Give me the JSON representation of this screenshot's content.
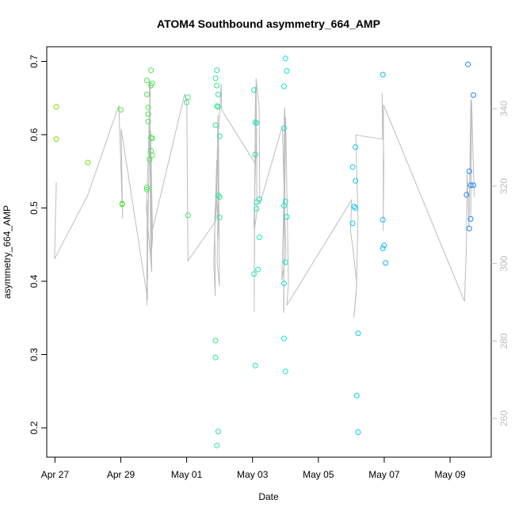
{
  "chart_data": {
    "type": "scatter",
    "title": "ATOM4 Southbound asymmetry_664_AMP",
    "xlabel": "Date",
    "ylabel": "asymmetry_664_AMP",
    "x_ticks": [
      "Apr 27",
      "Apr 29",
      "May 01",
      "May 03",
      "May 05",
      "May 07",
      "May 09"
    ],
    "y_ticks": [
      "0.2",
      "0.3",
      "0.4",
      "0.5",
      "0.6",
      "0.7"
    ],
    "y2_ticks": [
      "260",
      "280",
      "300",
      "320",
      "340"
    ],
    "xlim": [
      "Apr 26 18:00",
      "May 10 06:00"
    ],
    "ylim": [
      0.16,
      0.72
    ],
    "y2lim": [
      250,
      356
    ],
    "grid": false,
    "legend": "none",
    "colors": {
      "line": "#bdbdbd",
      "points_start": "#7fe000",
      "points_end": "#1e7dff",
      "right_axis": "#bdbdbd"
    },
    "series": [
      {
        "values": [
          {
            "x": "Apr 27 01:00",
            "y": 0.638
          },
          {
            "x": "Apr 27 01:00",
            "y": 0.594
          },
          {
            "x": "Apr 28 00:00",
            "y": 0.562
          },
          {
            "x": "Apr 29 00:00",
            "y": 0.634
          },
          {
            "x": "Apr 29 01:00",
            "y": 0.506
          },
          {
            "x": "Apr 29 01:00",
            "y": 0.505
          },
          {
            "x": "Apr 29 19:00",
            "y": 0.674
          },
          {
            "x": "Apr 29 19:00",
            "y": 0.655
          },
          {
            "x": "Apr 29 20:00",
            "y": 0.637
          },
          {
            "x": "Apr 29 20:00",
            "y": 0.628
          },
          {
            "x": "Apr 29 20:00",
            "y": 0.618
          },
          {
            "x": "Apr 29 22:00",
            "y": 0.688
          },
          {
            "x": "Apr 29 22:00",
            "y": 0.667
          },
          {
            "x": "Apr 29 23:00",
            "y": 0.67
          },
          {
            "x": "Apr 29 22:00",
            "y": 0.596
          },
          {
            "x": "Apr 29 23:00",
            "y": 0.595
          },
          {
            "x": "Apr 29 22:00",
            "y": 0.578
          },
          {
            "x": "Apr 29 23:00",
            "y": 0.572
          },
          {
            "x": "Apr 29 21:00",
            "y": 0.566
          },
          {
            "x": "Apr 29 19:00",
            "y": 0.528
          },
          {
            "x": "Apr 29 19:00",
            "y": 0.525
          },
          {
            "x": "May 01 01:00",
            "y": 0.651
          },
          {
            "x": "May 01 00:00",
            "y": 0.644
          },
          {
            "x": "May 01 01:00",
            "y": 0.49
          },
          {
            "x": "May 01 22:00",
            "y": 0.688
          },
          {
            "x": "May 01 21:00",
            "y": 0.677
          },
          {
            "x": "May 01 22:00",
            "y": 0.667
          },
          {
            "x": "May 01 23:00",
            "y": 0.655
          },
          {
            "x": "May 01 22:00",
            "y": 0.639
          },
          {
            "x": "May 01 23:00",
            "y": 0.638
          },
          {
            "x": "May 01 21:00",
            "y": 0.613
          },
          {
            "x": "May 02 00:00",
            "y": 0.598
          },
          {
            "x": "May 01 23:00",
            "y": 0.517
          },
          {
            "x": "May 02 00:00",
            "y": 0.515
          },
          {
            "x": "May 02 00:00",
            "y": 0.487
          },
          {
            "x": "May 01 21:00",
            "y": 0.319
          },
          {
            "x": "May 01 21:00",
            "y": 0.296
          },
          {
            "x": "May 01 23:00",
            "y": 0.195
          },
          {
            "x": "May 01 22:00",
            "y": 0.176
          },
          {
            "x": "May 03 01:00",
            "y": 0.661
          },
          {
            "x": "May 03 02:00",
            "y": 0.617
          },
          {
            "x": "May 03 03:00",
            "y": 0.616
          },
          {
            "x": "May 03 02:00",
            "y": 0.573
          },
          {
            "x": "May 03 05:00",
            "y": 0.512
          },
          {
            "x": "May 03 03:00",
            "y": 0.508
          },
          {
            "x": "May 03 03:00",
            "y": 0.499
          },
          {
            "x": "May 03 05:00",
            "y": 0.46
          },
          {
            "x": "May 03 04:00",
            "y": 0.416
          },
          {
            "x": "May 03 01:00",
            "y": 0.41
          },
          {
            "x": "May 03 02:00",
            "y": 0.285
          },
          {
            "x": "May 04 00:00",
            "y": 0.704
          },
          {
            "x": "May 04 01:00",
            "y": 0.687
          },
          {
            "x": "May 03 23:00",
            "y": 0.666
          },
          {
            "x": "May 03 23:00",
            "y": 0.609
          },
          {
            "x": "May 04 00:00",
            "y": 0.509
          },
          {
            "x": "May 03 23:00",
            "y": 0.503
          },
          {
            "x": "May 04 01:00",
            "y": 0.488
          },
          {
            "x": "May 04 00:00",
            "y": 0.426
          },
          {
            "x": "May 03 23:00",
            "y": 0.397
          },
          {
            "x": "May 03 23:00",
            "y": 0.322
          },
          {
            "x": "May 04 00:00",
            "y": 0.277
          },
          {
            "x": "May 06 01:00",
            "y": 0.556
          },
          {
            "x": "May 06 03:00",
            "y": 0.583
          },
          {
            "x": "May 06 03:00",
            "y": 0.537
          },
          {
            "x": "May 06 02:00",
            "y": 0.502
          },
          {
            "x": "May 06 03:00",
            "y": 0.5
          },
          {
            "x": "May 06 01:00",
            "y": 0.479
          },
          {
            "x": "May 06 05:00",
            "y": 0.329
          },
          {
            "x": "May 06 04:00",
            "y": 0.244
          },
          {
            "x": "May 06 05:00",
            "y": 0.194
          },
          {
            "x": "May 06 23:00",
            "y": 0.682
          },
          {
            "x": "May 06 23:00",
            "y": 0.484
          },
          {
            "x": "May 07 00:00",
            "y": 0.449
          },
          {
            "x": "May 06 23:00",
            "y": 0.445
          },
          {
            "x": "May 07 01:00",
            "y": 0.425
          },
          {
            "x": "May 09 13:00",
            "y": 0.696
          },
          {
            "x": "May 09 17:00",
            "y": 0.654
          },
          {
            "x": "May 09 14:00",
            "y": 0.55
          },
          {
            "x": "May 09 15:00",
            "y": 0.531
          },
          {
            "x": "May 09 17:00",
            "y": 0.531
          },
          {
            "x": "May 09 12:00",
            "y": 0.518
          },
          {
            "x": "May 09 15:00",
            "y": 0.485
          },
          {
            "x": "May 09 14:00",
            "y": 0.472
          }
        ]
      }
    ]
  }
}
